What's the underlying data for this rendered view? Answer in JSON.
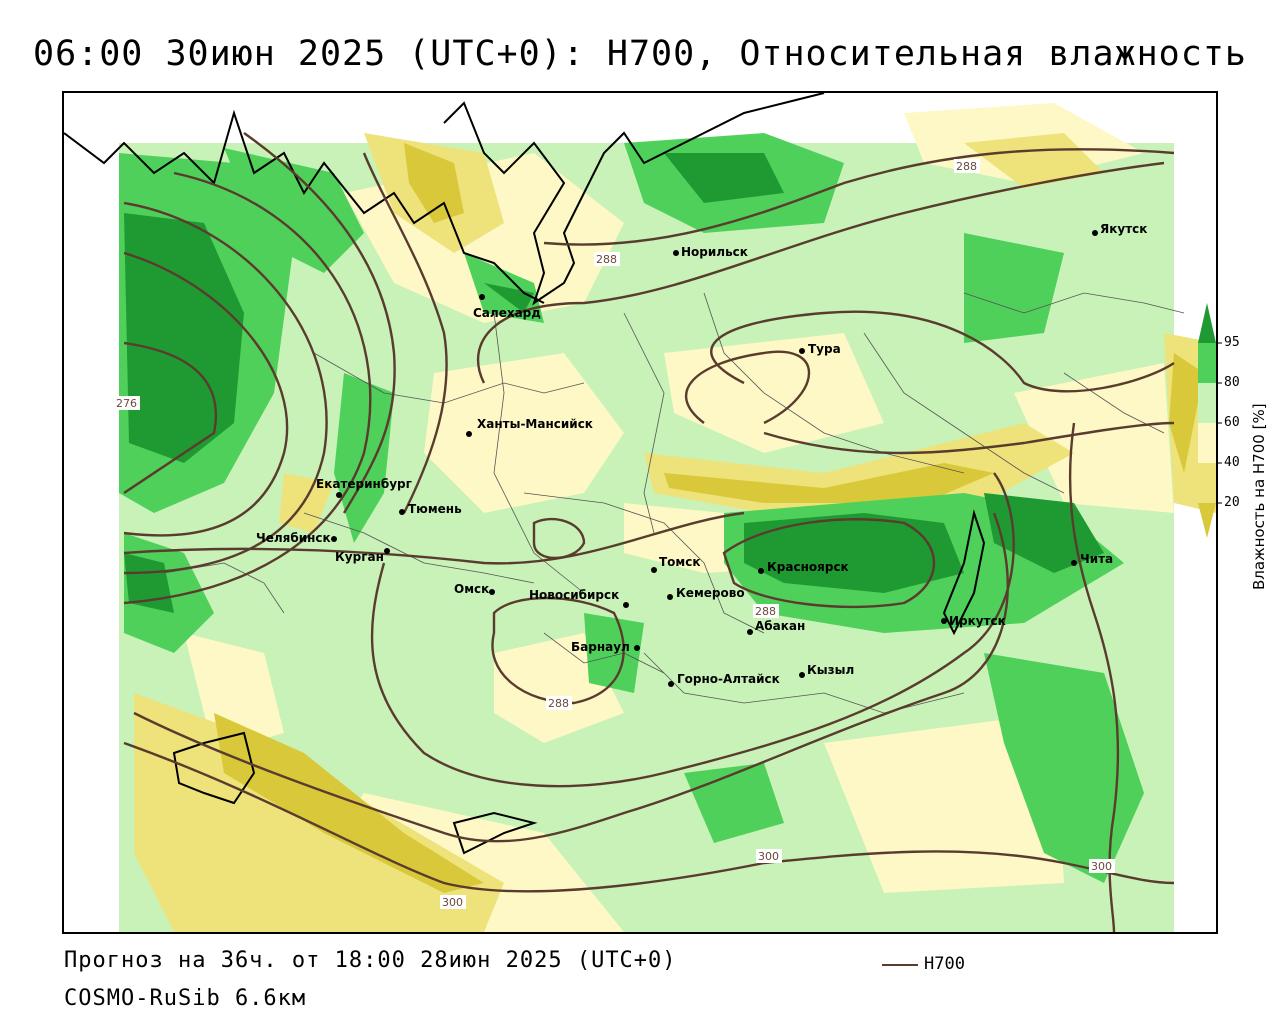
{
  "title": "06:00 30июн 2025 (UTC+0): H700, Относительная влажность",
  "footer": {
    "forecast": "Прогноз на 36ч. от 18:00 28июн 2025 (UTC+0)",
    "model": "COSMO-RuSib 6.6км",
    "contour_legend": "H700"
  },
  "legend": {
    "title": "Влажность на H700 [%]",
    "levels": [
      "20",
      "40",
      "60",
      "80",
      "95"
    ],
    "colors": {
      "below_20": "#d9c93a",
      "20_40": "#eee27a",
      "40_60": "#fdf8c6",
      "60_80": "#c8f2b8",
      "80_95": "#4fd05a",
      "above_95": "#1f9a32"
    }
  },
  "colors": {
    "contour": "#5a3c2e",
    "border": "#000000",
    "admin": "#444444"
  },
  "contour_labels": [
    "276",
    "288",
    "288",
    "288",
    "288",
    "300",
    "300",
    "300"
  ],
  "cities": [
    {
      "name": "Норильск"
    },
    {
      "name": "Якутск"
    },
    {
      "name": "Салехард"
    },
    {
      "name": "Тура"
    },
    {
      "name": "Ханты-Мансийск"
    },
    {
      "name": "Екатеринбург"
    },
    {
      "name": "Тюмень"
    },
    {
      "name": "Челябинск"
    },
    {
      "name": "Курган"
    },
    {
      "name": "Омск"
    },
    {
      "name": "Новосибирск"
    },
    {
      "name": "Томск"
    },
    {
      "name": "Кемерово"
    },
    {
      "name": "Красноярск"
    },
    {
      "name": "Абакан"
    },
    {
      "name": "Барнаул"
    },
    {
      "name": "Горно-Алтайск"
    },
    {
      "name": "Кызыл"
    },
    {
      "name": "Иркутск"
    },
    {
      "name": "Чита"
    }
  ]
}
